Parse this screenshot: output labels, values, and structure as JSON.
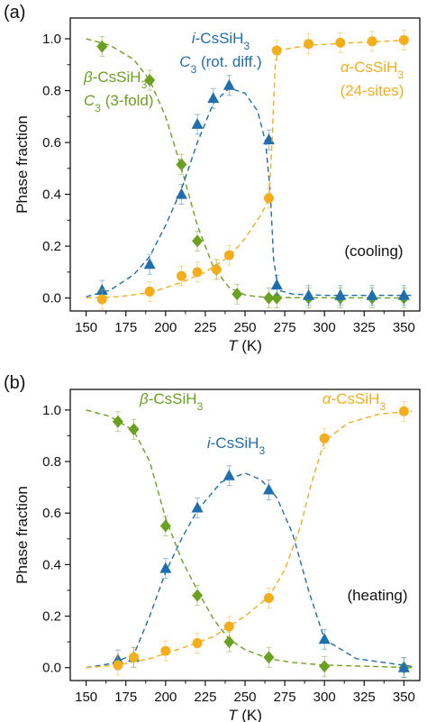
{
  "chart_data": [
    {
      "panel_label": "(a)",
      "type": "scatter",
      "xlabel_italic": "T",
      "xlabel_unit": " (K)",
      "ylabel": "Phase fraction",
      "xlim": [
        140,
        360
      ],
      "ylim": [
        -0.05,
        1.08
      ],
      "xticks": [
        150,
        175,
        200,
        225,
        250,
        275,
        300,
        325,
        350
      ],
      "yticks": [
        0.0,
        0.2,
        0.4,
        0.6,
        0.8,
        1.0
      ],
      "condition_note": "(cooling)",
      "series": [
        {
          "color": "#6aa121",
          "marker": "diamond",
          "label_lines": [
            [
              {
                "t": "β",
                "it": true
              },
              {
                "t": "-CsSiH"
              },
              {
                "t": "3",
                "sub": true
              }
            ],
            [
              {
                "t": "C",
                "it": true
              },
              {
                "t": "3",
                "sub": true
              },
              {
                "t": " (3-fold)"
              }
            ]
          ],
          "points": [
            [
              160,
              0.97
            ],
            [
              190,
              0.84
            ],
            [
              210,
              0.515
            ],
            [
              220,
              0.22
            ],
            [
              232,
              0.11
            ],
            [
              245,
              0.015
            ],
            [
              265,
              0.0
            ],
            [
              270,
              0.0
            ],
            [
              290,
              0.0
            ],
            [
              310,
              0.0
            ],
            [
              330,
              0.0
            ],
            [
              350,
              0.0
            ]
          ],
          "curve": [
            [
              150,
              1.0
            ],
            [
              165,
              0.975
            ],
            [
              180,
              0.92
            ],
            [
              190,
              0.84
            ],
            [
              200,
              0.7
            ],
            [
              210,
              0.5
            ],
            [
              220,
              0.28
            ],
            [
              230,
              0.12
            ],
            [
              240,
              0.04
            ],
            [
              250,
              0.012
            ],
            [
              260,
              0.004
            ],
            [
              280,
              0.001
            ],
            [
              355,
              0.0
            ]
          ]
        },
        {
          "color": "#1f6fae",
          "marker": "triangle",
          "label_lines": [
            [
              {
                "t": "i",
                "it": true
              },
              {
                "t": "-CsSiH"
              },
              {
                "t": "3",
                "sub": true
              }
            ],
            [
              {
                "t": "C",
                "it": true
              },
              {
                "t": "3",
                "sub": true
              },
              {
                "t": " (rot. diff.)"
              }
            ]
          ],
          "points": [
            [
              160,
              0.03
            ],
            [
              190,
              0.13
            ],
            [
              210,
              0.4
            ],
            [
              220,
              0.67
            ],
            [
              230,
              0.77
            ],
            [
              240,
              0.82
            ],
            [
              265,
              0.61
            ],
            [
              270,
              0.05
            ],
            [
              290,
              0.01
            ],
            [
              310,
              0.01
            ],
            [
              330,
              0.01
            ],
            [
              350,
              0.01
            ]
          ],
          "curve": [
            [
              150,
              0.005
            ],
            [
              165,
              0.03
            ],
            [
              180,
              0.09
            ],
            [
              190,
              0.16
            ],
            [
              200,
              0.28
            ],
            [
              210,
              0.42
            ],
            [
              220,
              0.6
            ],
            [
              230,
              0.75
            ],
            [
              240,
              0.81
            ],
            [
              250,
              0.79
            ],
            [
              258,
              0.72
            ],
            [
              263,
              0.6
            ],
            [
              266,
              0.4
            ],
            [
              268,
              0.15
            ],
            [
              271,
              0.03
            ],
            [
              280,
              0.015
            ],
            [
              300,
              0.01
            ],
            [
              355,
              0.01
            ]
          ]
        },
        {
          "color": "#f2ae1c",
          "marker": "circle",
          "label_lines": [
            [
              {
                "t": "α",
                "it": true
              },
              {
                "t": "-CsSiH"
              },
              {
                "t": "3",
                "sub": true
              }
            ],
            [
              {
                "t": "(24-sites)"
              }
            ]
          ],
          "points": [
            [
              160,
              -0.005
            ],
            [
              190,
              0.025
            ],
            [
              210,
              0.085
            ],
            [
              220,
              0.1
            ],
            [
              232,
              0.11
            ],
            [
              240,
              0.165
            ],
            [
              265,
              0.385
            ],
            [
              270,
              0.955
            ],
            [
              290,
              0.98
            ],
            [
              310,
              0.985
            ],
            [
              330,
              0.99
            ],
            [
              350,
              0.995
            ]
          ],
          "curve": [
            [
              150,
              0.0
            ],
            [
              170,
              0.005
            ],
            [
              190,
              0.02
            ],
            [
              210,
              0.06
            ],
            [
              225,
              0.1
            ],
            [
              240,
              0.16
            ],
            [
              250,
              0.23
            ],
            [
              260,
              0.32
            ],
            [
              265,
              0.38
            ],
            [
              267,
              0.6
            ],
            [
              269,
              0.9
            ],
            [
              271,
              0.955
            ],
            [
              290,
              0.975
            ],
            [
              320,
              0.985
            ],
            [
              355,
              0.995
            ]
          ]
        }
      ]
    },
    {
      "panel_label": "(b)",
      "type": "scatter",
      "xlabel_italic": "T",
      "xlabel_unit": " (K)",
      "ylabel": "Phase fraction",
      "xlim": [
        140,
        360
      ],
      "ylim": [
        -0.05,
        1.08
      ],
      "xticks": [
        150,
        175,
        200,
        225,
        250,
        275,
        300,
        325,
        350
      ],
      "yticks": [
        0.0,
        0.2,
        0.4,
        0.6,
        0.8,
        1.0
      ],
      "condition_note": "(heating)",
      "series": [
        {
          "color": "#6aa121",
          "marker": "diamond",
          "label_lines": [
            [
              {
                "t": "β",
                "it": true
              },
              {
                "t": "-CsSiH"
              },
              {
                "t": "3",
                "sub": true
              }
            ]
          ],
          "points": [
            [
              170,
              0.955
            ],
            [
              180,
              0.925
            ],
            [
              200,
              0.55
            ],
            [
              220,
              0.28
            ],
            [
              240,
              0.1
            ],
            [
              265,
              0.04
            ],
            [
              300,
              0.005
            ],
            [
              350,
              0.0
            ]
          ],
          "curve": [
            [
              150,
              1.0
            ],
            [
              165,
              0.975
            ],
            [
              180,
              0.92
            ],
            [
              190,
              0.8
            ],
            [
              200,
              0.58
            ],
            [
              210,
              0.42
            ],
            [
              220,
              0.3
            ],
            [
              230,
              0.19
            ],
            [
              240,
              0.11
            ],
            [
              250,
              0.07
            ],
            [
              265,
              0.035
            ],
            [
              280,
              0.02
            ],
            [
              300,
              0.01
            ],
            [
              355,
              0.0
            ]
          ]
        },
        {
          "color": "#1f6fae",
          "marker": "triangle",
          "label_lines": [
            [
              {
                "t": "i",
                "it": true
              },
              {
                "t": "-CsSiH"
              },
              {
                "t": "3",
                "sub": true
              }
            ]
          ],
          "points": [
            [
              170,
              0.03
            ],
            [
              180,
              0.04
            ],
            [
              200,
              0.385
            ],
            [
              220,
              0.62
            ],
            [
              240,
              0.745
            ],
            [
              265,
              0.69
            ],
            [
              300,
              0.11
            ],
            [
              350,
              0.0
            ]
          ],
          "curve": [
            [
              150,
              0.0
            ],
            [
              165,
              0.015
            ],
            [
              180,
              0.05
            ],
            [
              190,
              0.2
            ],
            [
              200,
              0.37
            ],
            [
              210,
              0.5
            ],
            [
              220,
              0.61
            ],
            [
              235,
              0.72
            ],
            [
              250,
              0.755
            ],
            [
              260,
              0.73
            ],
            [
              270,
              0.66
            ],
            [
              280,
              0.52
            ],
            [
              290,
              0.3
            ],
            [
              300,
              0.11
            ],
            [
              320,
              0.035
            ],
            [
              355,
              0.005
            ]
          ]
        },
        {
          "color": "#f2ae1c",
          "marker": "circle",
          "label_lines": [
            [
              {
                "t": "α",
                "it": true
              },
              {
                "t": "-CsSiH"
              },
              {
                "t": "3",
                "sub": true
              }
            ]
          ],
          "points": [
            [
              170,
              0.01
            ],
            [
              180,
              0.04
            ],
            [
              200,
              0.065
            ],
            [
              220,
              0.095
            ],
            [
              240,
              0.16
            ],
            [
              265,
              0.27
            ],
            [
              300,
              0.89
            ],
            [
              350,
              0.995
            ]
          ],
          "curve": [
            [
              150,
              0.0
            ],
            [
              170,
              0.01
            ],
            [
              190,
              0.035
            ],
            [
              210,
              0.075
            ],
            [
              230,
              0.12
            ],
            [
              250,
              0.2
            ],
            [
              265,
              0.275
            ],
            [
              275,
              0.38
            ],
            [
              285,
              0.55
            ],
            [
              292,
              0.72
            ],
            [
              300,
              0.88
            ],
            [
              315,
              0.95
            ],
            [
              335,
              0.985
            ],
            [
              355,
              0.995
            ]
          ]
        }
      ]
    }
  ]
}
